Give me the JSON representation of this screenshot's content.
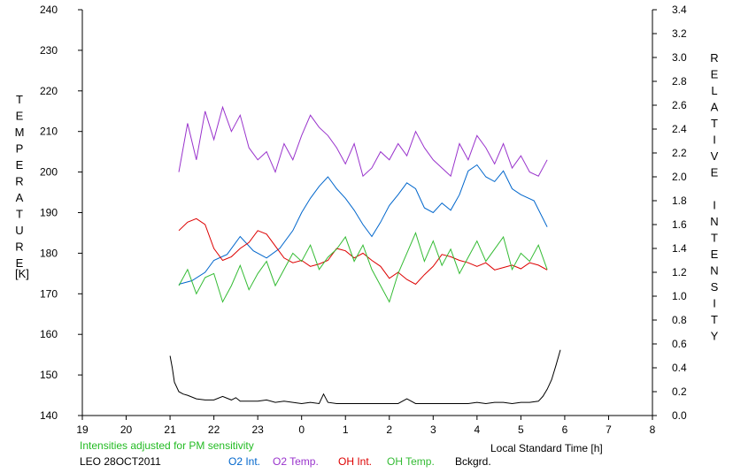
{
  "chart_data": {
    "type": "line",
    "xlabel": "Local Standard Time [h]",
    "ylabel": "TEMPERATURE",
    "ylabel_unit": "[K]",
    "y2label": "RELATIVE INTENSITY",
    "x_ticks": [
      "19",
      "20",
      "21",
      "22",
      "23",
      "0",
      "1",
      "2",
      "3",
      "4",
      "5",
      "6",
      "7",
      "8"
    ],
    "x_range": [
      19,
      32
    ],
    "ylim": [
      140,
      240
    ],
    "y_ticks": [
      140,
      150,
      160,
      170,
      180,
      190,
      200,
      210,
      220,
      230,
      240
    ],
    "y2lim": [
      0.0,
      3.4
    ],
    "y2_ticks": [
      "0.0",
      "0.2",
      "0.4",
      "0.6",
      "0.8",
      "1.0",
      "1.2",
      "1.4",
      "1.6",
      "1.8",
      "2.0",
      "2.2",
      "2.4",
      "2.6",
      "2.8",
      "3.0",
      "3.2",
      "3.4"
    ],
    "grid": false,
    "note": "Intensities adjusted for PM sensitivity",
    "station_label": "LEO 28OCT2011",
    "series": [
      {
        "name": "O2 Int.",
        "color": "#0066cc",
        "axis": "right",
        "x": [
          21.2,
          21.5,
          21.8,
          22.0,
          22.3,
          22.6,
          22.9,
          23.2,
          23.5,
          23.8,
          24.0,
          24.2,
          24.4,
          24.6,
          24.8,
          25.0,
          25.2,
          25.4,
          25.6,
          25.8,
          26.0,
          26.2,
          26.4,
          26.6,
          26.8,
          27.0,
          27.2,
          27.4,
          27.6,
          27.8,
          28.0,
          28.2,
          28.4,
          28.6,
          28.8,
          29.0,
          29.3,
          29.6
        ],
        "y": [
          1.1,
          1.13,
          1.2,
          1.3,
          1.35,
          1.5,
          1.38,
          1.32,
          1.4,
          1.55,
          1.7,
          1.82,
          1.92,
          2.0,
          1.9,
          1.82,
          1.72,
          1.6,
          1.5,
          1.62,
          1.76,
          1.85,
          1.95,
          1.9,
          1.74,
          1.7,
          1.78,
          1.72,
          1.85,
          2.05,
          2.1,
          2.0,
          1.96,
          2.05,
          1.9,
          1.85,
          1.8,
          1.58
        ]
      },
      {
        "name": "O2 Temp.",
        "color": "#9933cc",
        "axis": "left",
        "x": [
          21.2,
          21.4,
          21.6,
          21.8,
          22.0,
          22.2,
          22.4,
          22.6,
          22.8,
          23.0,
          23.2,
          23.4,
          23.6,
          23.8,
          24.0,
          24.2,
          24.4,
          24.6,
          24.8,
          25.0,
          25.2,
          25.4,
          25.6,
          25.8,
          26.0,
          26.2,
          26.4,
          26.6,
          26.8,
          27.0,
          27.2,
          27.4,
          27.6,
          27.8,
          28.0,
          28.2,
          28.4,
          28.6,
          28.8,
          29.0,
          29.2,
          29.4,
          29.6
        ],
        "y": [
          200,
          212,
          203,
          215,
          208,
          216,
          210,
          214,
          206,
          203,
          205,
          200,
          207,
          203,
          209,
          214,
          211,
          209,
          206,
          202,
          207,
          199,
          201,
          205,
          203,
          207,
          204,
          210,
          206,
          203,
          201,
          199,
          207,
          203,
          209,
          206,
          202,
          207,
          201,
          204,
          200,
          199,
          203
        ]
      },
      {
        "name": "OH Int.",
        "color": "#dd0000",
        "axis": "right",
        "x": [
          21.2,
          21.4,
          21.6,
          21.8,
          22.0,
          22.2,
          22.4,
          22.6,
          22.8,
          23.0,
          23.2,
          23.4,
          23.6,
          23.8,
          24.0,
          24.2,
          24.4,
          24.6,
          24.8,
          25.0,
          25.2,
          25.4,
          25.6,
          25.8,
          26.0,
          26.2,
          26.4,
          26.6,
          26.8,
          27.0,
          27.2,
          27.4,
          27.6,
          27.8,
          28.0,
          28.2,
          28.4,
          28.6,
          28.8,
          29.0,
          29.2,
          29.4,
          29.6
        ],
        "y": [
          1.55,
          1.62,
          1.65,
          1.6,
          1.4,
          1.3,
          1.33,
          1.4,
          1.45,
          1.55,
          1.52,
          1.42,
          1.32,
          1.28,
          1.3,
          1.25,
          1.27,
          1.3,
          1.4,
          1.38,
          1.32,
          1.36,
          1.3,
          1.25,
          1.15,
          1.2,
          1.14,
          1.1,
          1.18,
          1.25,
          1.35,
          1.33,
          1.3,
          1.28,
          1.25,
          1.28,
          1.22,
          1.24,
          1.26,
          1.23,
          1.28,
          1.26,
          1.22
        ]
      },
      {
        "name": "OH Temp.",
        "color": "#33bb33",
        "axis": "left",
        "x": [
          21.2,
          21.4,
          21.6,
          21.8,
          22.0,
          22.2,
          22.4,
          22.6,
          22.8,
          23.0,
          23.2,
          23.4,
          23.6,
          23.8,
          24.0,
          24.2,
          24.4,
          24.6,
          24.8,
          25.0,
          25.2,
          25.4,
          25.6,
          25.8,
          26.0,
          26.2,
          26.4,
          26.6,
          26.8,
          27.0,
          27.2,
          27.4,
          27.6,
          27.8,
          28.0,
          28.2,
          28.4,
          28.6,
          28.8,
          29.0,
          29.2,
          29.4,
          29.6
        ],
        "y": [
          172,
          176,
          170,
          174,
          175,
          168,
          172,
          177,
          171,
          175,
          178,
          172,
          176,
          180,
          178,
          182,
          176,
          179,
          181,
          184,
          178,
          182,
          176,
          172,
          168,
          175,
          180,
          185,
          178,
          183,
          177,
          181,
          175,
          179,
          183,
          178,
          181,
          184,
          176,
          180,
          178,
          182,
          176
        ]
      },
      {
        "name": "Bckgrd.",
        "color": "#000000",
        "axis": "right",
        "x": [
          21.0,
          21.05,
          21.1,
          21.2,
          21.3,
          21.4,
          21.6,
          21.8,
          22.0,
          22.2,
          22.4,
          22.5,
          22.6,
          22.8,
          23.0,
          23.2,
          23.4,
          23.6,
          23.8,
          24.0,
          24.2,
          24.4,
          24.5,
          24.6,
          24.8,
          25.0,
          25.2,
          25.4,
          25.6,
          25.8,
          26.0,
          26.2,
          26.4,
          26.6,
          26.8,
          27.0,
          27.2,
          27.4,
          27.6,
          27.8,
          28.0,
          28.2,
          28.4,
          28.6,
          28.8,
          29.0,
          29.2,
          29.4,
          29.5,
          29.6,
          29.7,
          29.8,
          29.9
        ],
        "y": [
          0.5,
          0.4,
          0.28,
          0.2,
          0.18,
          0.17,
          0.14,
          0.13,
          0.13,
          0.16,
          0.13,
          0.15,
          0.12,
          0.12,
          0.12,
          0.13,
          0.11,
          0.12,
          0.11,
          0.1,
          0.11,
          0.1,
          0.18,
          0.11,
          0.1,
          0.1,
          0.1,
          0.1,
          0.1,
          0.1,
          0.1,
          0.1,
          0.14,
          0.1,
          0.1,
          0.1,
          0.1,
          0.1,
          0.1,
          0.1,
          0.11,
          0.1,
          0.11,
          0.11,
          0.1,
          0.11,
          0.11,
          0.12,
          0.16,
          0.22,
          0.3,
          0.42,
          0.55
        ]
      }
    ]
  }
}
